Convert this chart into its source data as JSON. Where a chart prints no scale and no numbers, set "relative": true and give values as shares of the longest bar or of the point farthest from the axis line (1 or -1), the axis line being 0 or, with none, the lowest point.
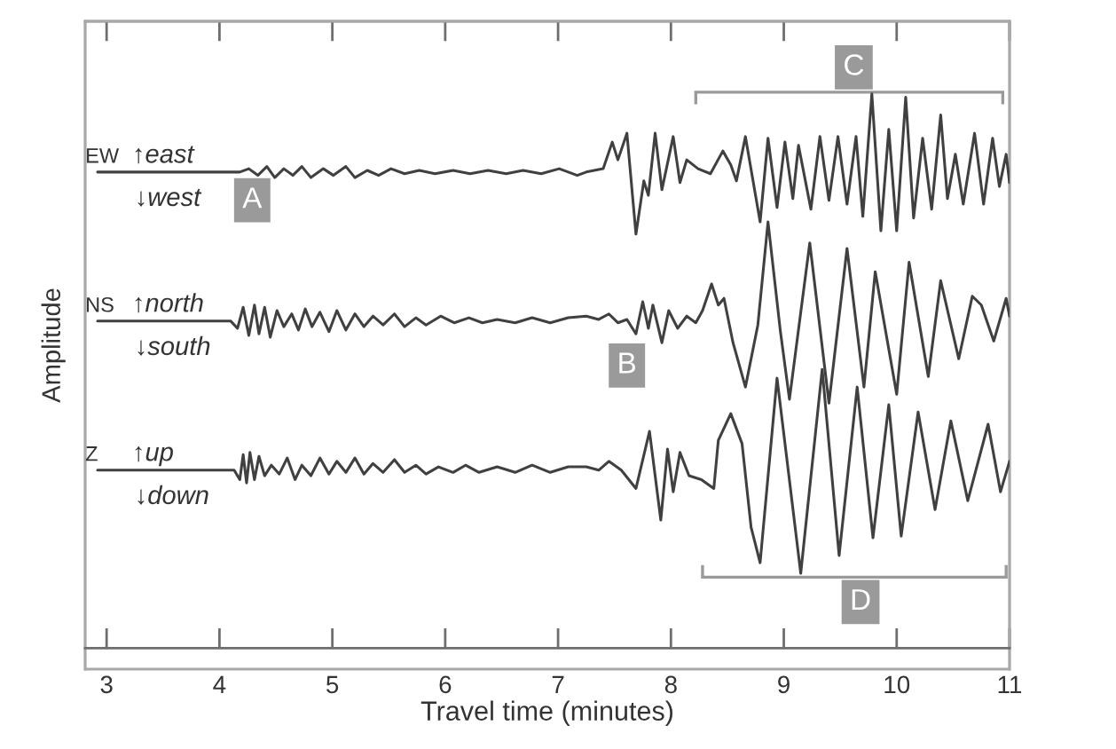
{
  "chart_data": {
    "type": "line",
    "relative": true,
    "xlabel": "Travel time (minutes)",
    "ylabel": "Amplitude",
    "xlim": [
      2.81,
      11
    ],
    "xticks": [
      3,
      4,
      5,
      6,
      7,
      8,
      9,
      10,
      11
    ],
    "series": [
      {
        "name": "EW",
        "color": "#404040",
        "x": [
          2.92,
          4.18,
          4.26,
          4.34,
          4.42,
          4.49,
          4.57,
          4.65,
          4.73,
          4.81,
          4.92,
          5.01,
          5.12,
          5.2,
          5.31,
          5.41,
          5.52,
          5.64,
          5.77,
          5.91,
          6.07,
          6.22,
          6.38,
          6.54,
          6.69,
          6.85,
          7.01,
          7.17,
          7.25,
          7.4,
          7.48,
          7.53,
          7.61,
          7.69,
          7.76,
          7.8,
          7.86,
          7.92,
          8.02,
          8.08,
          8.14,
          8.24,
          8.35,
          8.46,
          8.53,
          8.58,
          8.66,
          8.79,
          8.86,
          8.94,
          9.01,
          9.08,
          9.13,
          9.24,
          9.32,
          9.4,
          9.48,
          9.56,
          9.64,
          9.7,
          9.78,
          9.86,
          9.93,
          10.0,
          10.08,
          10.15,
          10.23,
          10.31,
          10.39,
          10.45,
          10.52,
          10.59,
          10.69,
          10.77,
          10.85,
          10.91,
          10.97,
          11.0
        ],
        "values": [
          0.859,
          0.859,
          0.865,
          0.853,
          0.869,
          0.849,
          0.865,
          0.853,
          0.869,
          0.849,
          0.865,
          0.853,
          0.869,
          0.849,
          0.862,
          0.853,
          0.865,
          0.856,
          0.862,
          0.856,
          0.862,
          0.856,
          0.862,
          0.856,
          0.862,
          0.856,
          0.865,
          0.853,
          0.859,
          0.865,
          0.913,
          0.881,
          0.929,
          0.747,
          0.843,
          0.817,
          0.929,
          0.827,
          0.923,
          0.84,
          0.881,
          0.865,
          0.856,
          0.897,
          0.872,
          0.843,
          0.923,
          0.769,
          0.92,
          0.795,
          0.913,
          0.811,
          0.907,
          0.792,
          0.923,
          0.808,
          0.923,
          0.801,
          0.923,
          0.779,
          1.0,
          0.753,
          0.936,
          0.753,
          0.994,
          0.776,
          0.92,
          0.792,
          0.962,
          0.811,
          0.891,
          0.801,
          0.929,
          0.801,
          0.92,
          0.833,
          0.891,
          0.84
        ]
      },
      {
        "name": "NS",
        "color": "#404040",
        "x": [
          2.92,
          4.1,
          4.16,
          4.21,
          4.26,
          4.31,
          4.35,
          4.4,
          4.45,
          4.51,
          4.57,
          4.64,
          4.7,
          4.76,
          4.82,
          4.89,
          4.97,
          5.04,
          5.12,
          5.2,
          5.28,
          5.36,
          5.45,
          5.55,
          5.64,
          5.74,
          5.83,
          5.96,
          6.08,
          6.21,
          6.33,
          6.46,
          6.62,
          6.77,
          6.93,
          7.09,
          7.25,
          7.36,
          7.45,
          7.53,
          7.61,
          7.69,
          7.75,
          7.8,
          7.84,
          7.92,
          7.98,
          8.06,
          8.14,
          8.22,
          8.28,
          8.36,
          8.42,
          8.47,
          8.55,
          8.66,
          8.77,
          8.86,
          8.97,
          9.05,
          9.23,
          9.4,
          9.56,
          9.71,
          9.81,
          10.0,
          10.11,
          10.28,
          10.39,
          10.55,
          10.67,
          10.75,
          10.86,
          10.97,
          11.0
        ],
        "values": [
          0.59,
          0.59,
          0.577,
          0.615,
          0.564,
          0.619,
          0.567,
          0.615,
          0.561,
          0.609,
          0.58,
          0.603,
          0.574,
          0.612,
          0.58,
          0.606,
          0.571,
          0.609,
          0.574,
          0.603,
          0.58,
          0.599,
          0.583,
          0.603,
          0.58,
          0.596,
          0.583,
          0.599,
          0.587,
          0.596,
          0.587,
          0.593,
          0.587,
          0.596,
          0.587,
          0.596,
          0.599,
          0.593,
          0.603,
          0.587,
          0.593,
          0.567,
          0.625,
          0.577,
          0.619,
          0.551,
          0.609,
          0.577,
          0.599,
          0.587,
          0.609,
          0.657,
          0.619,
          0.631,
          0.551,
          0.471,
          0.583,
          0.769,
          0.571,
          0.449,
          0.731,
          0.442,
          0.721,
          0.471,
          0.679,
          0.458,
          0.696,
          0.49,
          0.663,
          0.522,
          0.635,
          0.619,
          0.554,
          0.631,
          0.599
        ]
      },
      {
        "name": "Z",
        "color": "#404040",
        "x": [
          2.92,
          4.13,
          4.18,
          4.21,
          4.24,
          4.27,
          4.31,
          4.35,
          4.4,
          4.46,
          4.53,
          4.6,
          4.67,
          4.73,
          4.81,
          4.89,
          4.97,
          5.04,
          5.12,
          5.2,
          5.28,
          5.36,
          5.45,
          5.55,
          5.64,
          5.74,
          5.83,
          5.94,
          6.07,
          6.18,
          6.3,
          6.46,
          6.62,
          6.77,
          6.93,
          7.09,
          7.25,
          7.36,
          7.45,
          7.56,
          7.69,
          7.81,
          7.91,
          7.97,
          8.02,
          8.08,
          8.16,
          8.27,
          8.38,
          8.42,
          8.53,
          8.63,
          8.71,
          8.79,
          8.94,
          9.15,
          9.34,
          9.49,
          9.65,
          9.79,
          9.93,
          10.04,
          10.19,
          10.34,
          10.48,
          10.63,
          10.81,
          10.92,
          11.0
        ],
        "values": [
          0.321,
          0.321,
          0.304,
          0.349,
          0.298,
          0.353,
          0.304,
          0.346,
          0.311,
          0.33,
          0.314,
          0.343,
          0.304,
          0.33,
          0.311,
          0.343,
          0.314,
          0.337,
          0.317,
          0.343,
          0.314,
          0.333,
          0.317,
          0.34,
          0.317,
          0.33,
          0.314,
          0.327,
          0.317,
          0.33,
          0.317,
          0.327,
          0.317,
          0.33,
          0.317,
          0.327,
          0.327,
          0.321,
          0.337,
          0.321,
          0.288,
          0.391,
          0.231,
          0.359,
          0.282,
          0.353,
          0.311,
          0.304,
          0.288,
          0.375,
          0.423,
          0.369,
          0.218,
          0.154,
          0.487,
          0.135,
          0.503,
          0.167,
          0.471,
          0.199,
          0.439,
          0.202,
          0.426,
          0.25,
          0.41,
          0.266,
          0.404,
          0.282,
          0.337
        ]
      }
    ],
    "annotations": [
      {
        "text": "A",
        "x": 4.29,
        "y": 0.808
      },
      {
        "text": "B",
        "x": 7.61,
        "y": 0.51
      },
      {
        "text": "C",
        "x": 9.62,
        "y": 1.048
      },
      {
        "text": "D",
        "x": 9.68,
        "y": 0.083
      },
      "↑east",
      "↓west",
      "↑north",
      "↓south",
      "↑up",
      "↓down"
    ]
  }
}
